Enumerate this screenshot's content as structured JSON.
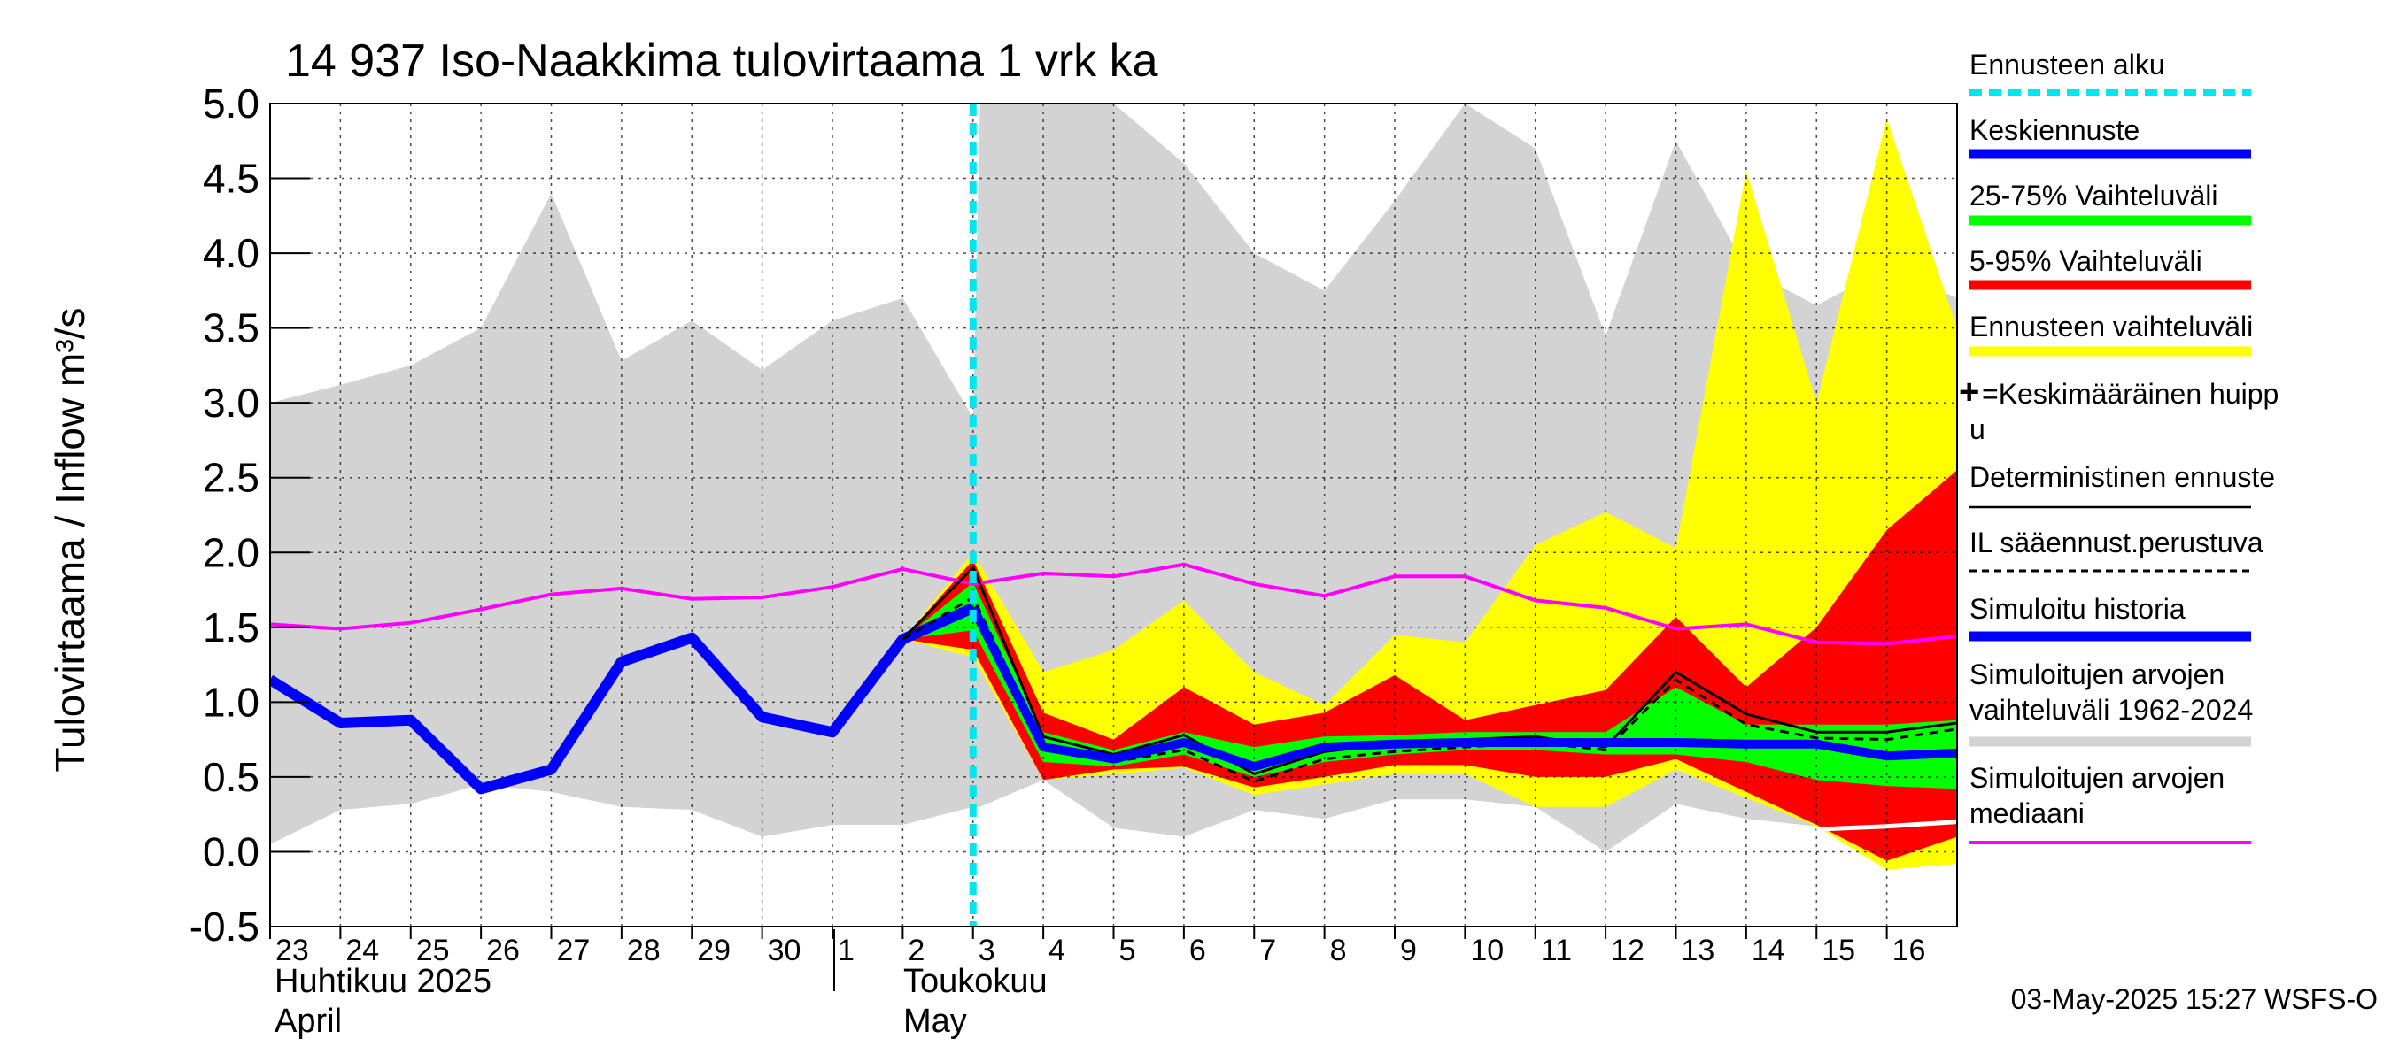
{
  "chart_data": {
    "type": "area",
    "title": "14 937 Iso-Naakkima tulovirtaama 1 vrk ka",
    "ylabel": "Tulovirtaama / Inflow    m³/s",
    "ylim": [
      -0.5,
      5.0
    ],
    "yticks": [
      "-0.5",
      "0.0",
      "0.5",
      "1.0",
      "1.5",
      "2.0",
      "2.5",
      "3.0",
      "3.5",
      "4.0",
      "4.5",
      "5.0"
    ],
    "xlim": [
      0,
      24
    ],
    "day_labels": [
      "23",
      "24",
      "25",
      "26",
      "27",
      "28",
      "29",
      "30",
      "1",
      "2",
      "3",
      "4",
      "5",
      "6",
      "7",
      "8",
      "9",
      "10",
      "11",
      "12",
      "13",
      "14",
      "15",
      "16"
    ],
    "months": {
      "april_fi": "Huhtikuu  2025",
      "april_en": "April",
      "may_fi": "Toukokuu",
      "may_en": "May"
    },
    "forecast_start_x": 10,
    "colors": {
      "forecast_start": "#00e5ee",
      "mean_forecast": "#0000ff",
      "range_25_75": "#00ff00",
      "range_5_95": "#ff0000",
      "forecast_range": "#ffff00",
      "deterministic": "#000000",
      "simulated_history": "#0000ff",
      "historical_range": "#d3d3d3",
      "median": "#ff00ff"
    },
    "historical_range": {
      "x": [
        0,
        1,
        2,
        3,
        4,
        5,
        6,
        7,
        8,
        9,
        10,
        10.1,
        11,
        12,
        13,
        14,
        15,
        16,
        17,
        18,
        19,
        20,
        21,
        22,
        23,
        24
      ],
      "upper": [
        3.0,
        3.12,
        3.25,
        3.5,
        4.4,
        3.28,
        3.55,
        3.22,
        3.55,
        3.7,
        2.9,
        5.0,
        5.0,
        5.0,
        4.6,
        4.0,
        3.75,
        4.35,
        5.0,
        4.7,
        3.45,
        4.75,
        3.9,
        3.65,
        3.9,
        3.7
      ],
      "lower": [
        0.05,
        0.28,
        0.32,
        0.45,
        0.4,
        0.3,
        0.28,
        0.1,
        0.18,
        0.18,
        0.3,
        0.3,
        0.48,
        0.16,
        0.1,
        0.28,
        0.22,
        0.35,
        0.35,
        0.3,
        0.0,
        0.32,
        0.22,
        0.17,
        0.17,
        0.2
      ]
    },
    "forecast_range": {
      "x": [
        9,
        10,
        11,
        12,
        13,
        14,
        15,
        16,
        17,
        18,
        19,
        20,
        21,
        22,
        23,
        24
      ],
      "upper": [
        1.42,
        2.0,
        1.2,
        1.35,
        1.68,
        1.2,
        0.98,
        1.45,
        1.4,
        2.05,
        2.27,
        2.03,
        4.55,
        3.0,
        4.9,
        3.5
      ],
      "lower": [
        1.42,
        1.3,
        0.48,
        0.52,
        0.56,
        0.38,
        0.45,
        0.52,
        0.52,
        0.3,
        0.3,
        0.55,
        0.36,
        0.17,
        -0.12,
        -0.08
      ]
    },
    "range_5_95": {
      "x": [
        9,
        10,
        11,
        12,
        13,
        14,
        15,
        16,
        17,
        18,
        19,
        20,
        21,
        22,
        23,
        24
      ],
      "upper": [
        1.42,
        1.95,
        0.93,
        0.75,
        1.1,
        0.85,
        0.93,
        1.18,
        0.88,
        0.98,
        1.08,
        1.57,
        1.1,
        1.5,
        2.15,
        2.55
      ],
      "lower": [
        1.42,
        1.35,
        0.48,
        0.55,
        0.57,
        0.43,
        0.5,
        0.58,
        0.58,
        0.5,
        0.5,
        0.62,
        0.4,
        0.18,
        -0.06,
        0.1
      ]
    },
    "range_25_75": {
      "x": [
        9,
        10,
        11,
        12,
        13,
        14,
        15,
        16,
        17,
        18,
        19,
        20,
        21,
        22,
        23,
        24
      ],
      "upper": [
        1.42,
        1.8,
        0.8,
        0.68,
        0.8,
        0.7,
        0.77,
        0.78,
        0.8,
        0.8,
        0.8,
        1.1,
        0.85,
        0.85,
        0.85,
        0.88
      ],
      "lower": [
        1.42,
        1.48,
        0.6,
        0.57,
        0.65,
        0.5,
        0.6,
        0.65,
        0.68,
        0.68,
        0.65,
        0.65,
        0.6,
        0.48,
        0.44,
        0.42
      ]
    },
    "simulated_history": {
      "x": [
        0,
        1,
        2,
        3,
        4,
        5,
        6,
        7,
        8,
        9,
        10
      ],
      "y": [
        1.15,
        0.86,
        0.88,
        0.42,
        0.55,
        1.27,
        1.43,
        0.9,
        0.8,
        1.42,
        1.63
      ]
    },
    "mean_forecast": {
      "x": [
        10,
        11,
        12,
        13,
        14,
        15,
        16,
        17,
        18,
        19,
        20,
        21,
        22,
        23,
        24
      ],
      "y": [
        1.63,
        0.7,
        0.62,
        0.73,
        0.57,
        0.7,
        0.72,
        0.73,
        0.73,
        0.73,
        0.73,
        0.72,
        0.72,
        0.64,
        0.66
      ]
    },
    "deterministic": {
      "x": [
        9,
        10,
        11,
        12,
        13,
        14,
        15,
        16,
        17,
        18,
        19,
        20,
        21,
        22,
        23,
        24
      ],
      "y": [
        1.42,
        1.9,
        0.77,
        0.65,
        0.78,
        0.52,
        0.67,
        0.72,
        0.75,
        0.77,
        0.7,
        1.2,
        0.92,
        0.8,
        0.8,
        0.86
      ]
    },
    "il_forecast": {
      "x": [
        9,
        10,
        11,
        12,
        13,
        14,
        15,
        16,
        17,
        18,
        19,
        20,
        21,
        22,
        23,
        24
      ],
      "y": [
        1.42,
        1.7,
        0.72,
        0.6,
        0.68,
        0.47,
        0.62,
        0.67,
        0.7,
        0.73,
        0.68,
        1.15,
        0.85,
        0.76,
        0.75,
        0.82
      ]
    },
    "median": {
      "x": [
        0,
        1,
        2,
        3,
        4,
        5,
        6,
        7,
        8,
        9,
        10,
        11,
        12,
        13,
        14,
        15,
        16,
        17,
        18,
        19,
        20,
        21,
        22,
        23,
        24
      ],
      "y": [
        1.52,
        1.49,
        1.53,
        1.62,
        1.72,
        1.76,
        1.69,
        1.7,
        1.77,
        1.89,
        1.79,
        1.86,
        1.84,
        1.92,
        1.79,
        1.71,
        1.84,
        1.84,
        1.68,
        1.63,
        1.49,
        1.52,
        1.4,
        1.39,
        1.44
      ]
    },
    "median_tail": {
      "x": [
        22,
        23,
        24
      ],
      "y": [
        0.15,
        0.17,
        0.2
      ]
    },
    "legend": [
      {
        "key": "forecast_start",
        "label": "Ennusteen alku",
        "style": "dashed-thick"
      },
      {
        "key": "mean_forecast",
        "label": "Keskiennuste",
        "style": "thick"
      },
      {
        "key": "range_25_75",
        "label": "25-75% Vaihteluväli",
        "style": "thick"
      },
      {
        "key": "range_5_95",
        "label": "5-95% Vaihteluväli",
        "style": "thick"
      },
      {
        "key": "forecast_range",
        "label": "Ennusteen vaihteluväli",
        "style": "thick"
      },
      {
        "key": "mean_peak",
        "label": "=Keskimääräinen huipp",
        "label2": "u",
        "style": "plus"
      },
      {
        "key": "deterministic",
        "label": "Deterministinen ennuste",
        "style": "thin"
      },
      {
        "key": "il_forecast",
        "label": "IL sääennust.perustuva",
        "style": "dashed-thin"
      },
      {
        "key": "simulated_history",
        "label": "Simuloitu historia",
        "style": "thick"
      },
      {
        "key": "historical_range",
        "label": "Simuloitujen arvojen",
        "label2": "vaihteluväli 1962-2024",
        "style": "thick"
      },
      {
        "key": "median",
        "label": "Simuloitujen arvojen",
        "label2": "mediaani",
        "style": "thin"
      }
    ]
  },
  "footer": {
    "timestamp": "03-May-2025 15:27 WSFS-O"
  }
}
